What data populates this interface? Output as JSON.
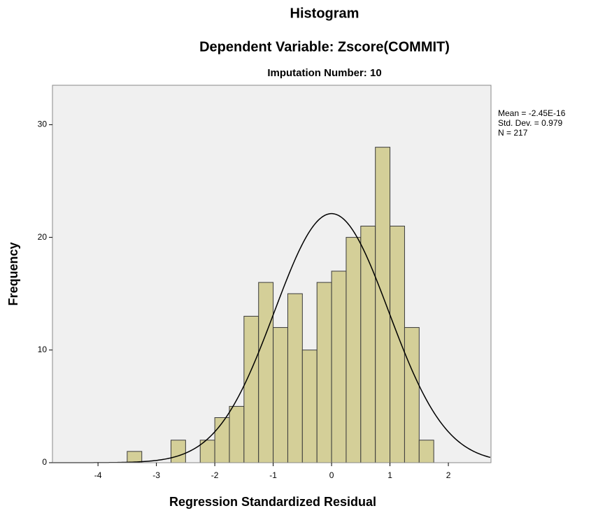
{
  "chart_data": {
    "type": "histogram",
    "title": "Histogram",
    "subtitle": "Dependent Variable: Zscore(COMMIT)",
    "panel_title": "Imputation Number: 10",
    "x_label": "Regression Standardized Residual",
    "y_label": "Frequency",
    "bins": [
      -3.5,
      -3.25,
      -3.0,
      -2.75,
      -2.5,
      -2.25,
      -2.0,
      -1.75,
      -1.5,
      -1.25,
      -1.0,
      -0.75,
      -0.5,
      -0.25,
      0.0,
      0.25,
      0.5,
      0.75,
      1.0,
      1.25,
      1.5,
      1.75
    ],
    "values": [
      1,
      0,
      0,
      2,
      0,
      2,
      4,
      5,
      13,
      16,
      12,
      15,
      10,
      16,
      17,
      20,
      21,
      28,
      21,
      12,
      2
    ],
    "color": "#d4cf98",
    "curve_color": "#000000",
    "stats": [
      {
        "label": "Mean = -2.45E-16",
        "value": -2.45e-16
      },
      {
        "label": "Std. Dev. = 0.979",
        "value": 0.979
      },
      {
        "label": "N = 217",
        "value": 217
      }
    ],
    "xlim": [
      -4.78,
      2.73
    ],
    "xticks": [
      -4,
      -3,
      -2,
      -1,
      0,
      1,
      2
    ],
    "ylim": [
      0,
      33.5
    ],
    "yticks": [
      0,
      10,
      20,
      30
    ]
  }
}
